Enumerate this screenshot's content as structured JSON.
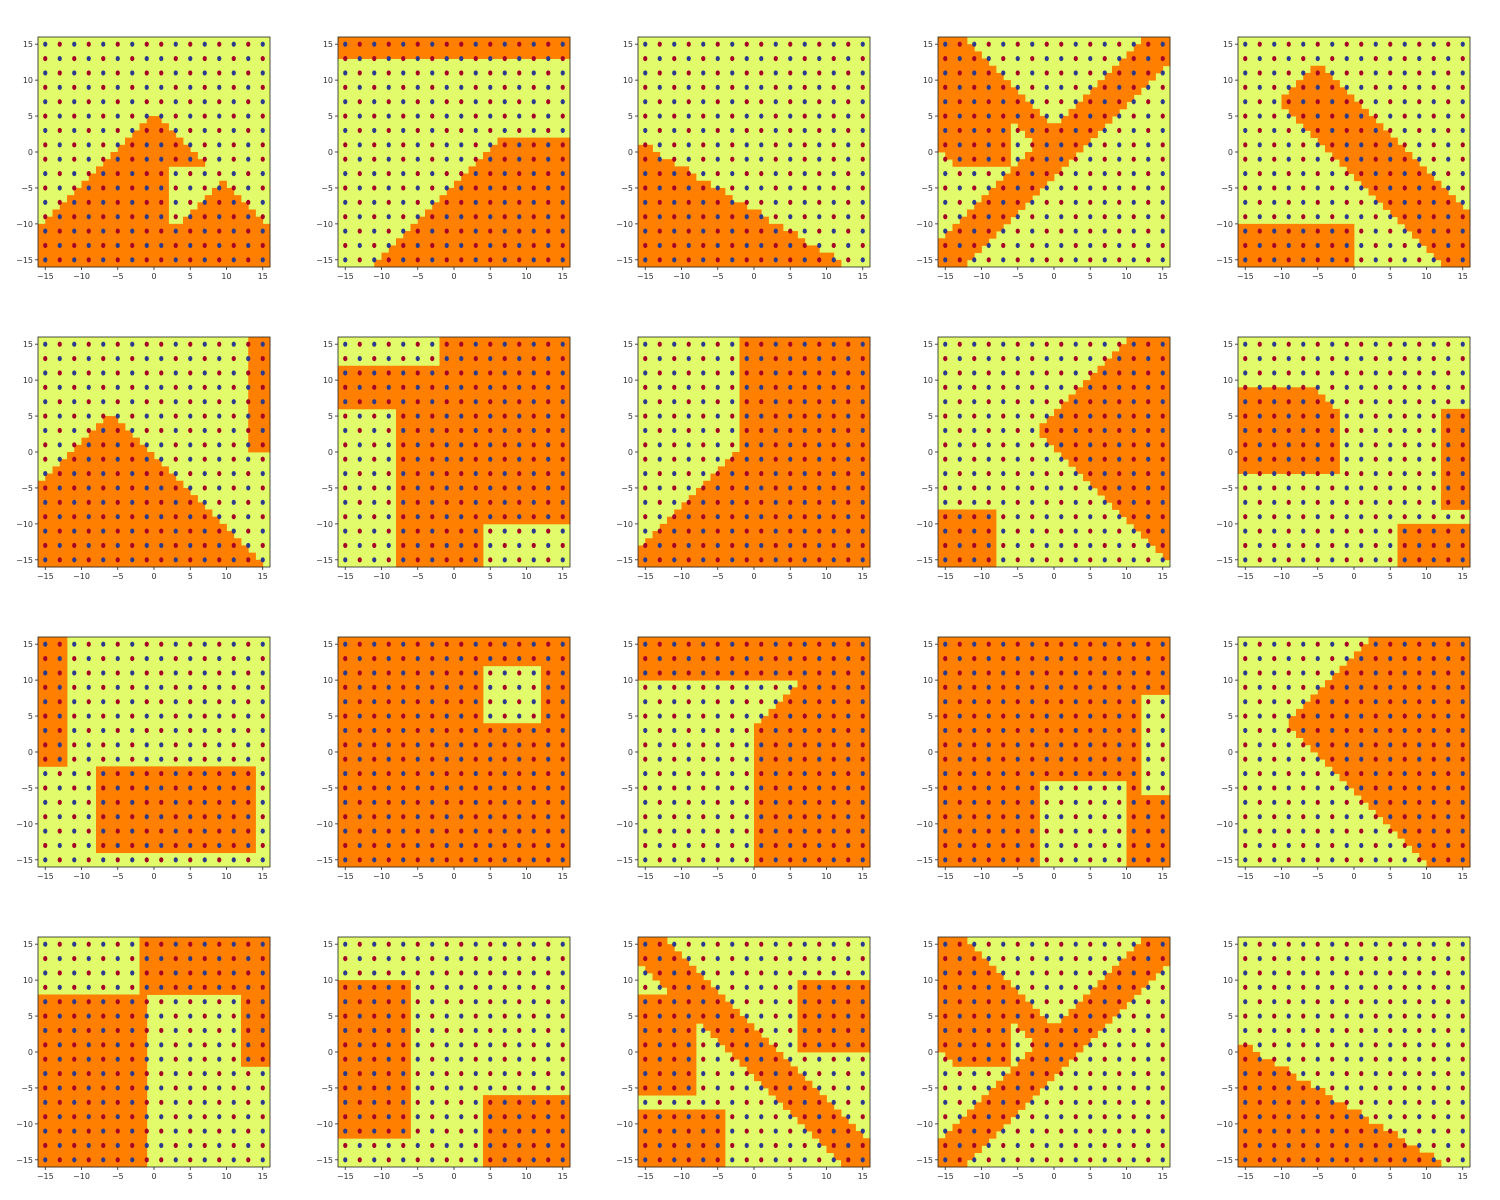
{
  "colors": {
    "region_a": "#e1fb6a",
    "region_b": "#ff7f00",
    "class_a_point": "#2b3a8c",
    "class_b_point": "#a50026"
  },
  "chart_data": {
    "type": "scatter",
    "layout": {
      "rows": 4,
      "cols": 5
    },
    "axis": {
      "xlim": [
        -16,
        16
      ],
      "ylim": [
        -16,
        16
      ],
      "xticks": [
        -15,
        -10,
        -5,
        0,
        5,
        10,
        15
      ],
      "yticks": [
        -15,
        -10,
        -5,
        0,
        5,
        10,
        15
      ],
      "xtick_labels": [
        "−15",
        "−10",
        "−5",
        "0",
        "5",
        "10",
        "15"
      ],
      "ytick_labels": [
        "−15",
        "−10",
        "−5",
        "0",
        "5",
        "10",
        "15"
      ]
    },
    "point_grid": {
      "start": -15,
      "stop": 15,
      "step": 2
    },
    "class_rule": "alternating diagonal checkerboard: |x - y| and |x + y| bands",
    "panels": [
      {
        "id": 1,
        "pattern": "x-cross-left"
      },
      {
        "id": 2,
        "pattern": "diag-up"
      },
      {
        "id": 3,
        "pattern": "bottom-left"
      },
      {
        "id": 4,
        "pattern": "x-cross-top"
      },
      {
        "id": 5,
        "pattern": "diag-down-band"
      },
      {
        "id": 6,
        "pattern": "diag-down-half"
      },
      {
        "id": 7,
        "pattern": "center-x"
      },
      {
        "id": 8,
        "pattern": "wedge-right"
      },
      {
        "id": 9,
        "pattern": "center-right"
      },
      {
        "id": 10,
        "pattern": "blob-left"
      },
      {
        "id": 11,
        "pattern": "mixed-light"
      },
      {
        "id": 12,
        "pattern": "mostly-orange"
      },
      {
        "id": 13,
        "pattern": "right-wedge"
      },
      {
        "id": 14,
        "pattern": "x-cross-dense"
      },
      {
        "id": 15,
        "pattern": "diag-band-wide"
      },
      {
        "id": 16,
        "pattern": "left-block"
      },
      {
        "id": 17,
        "pattern": "x-light"
      },
      {
        "id": 18,
        "pattern": "diag-crossed"
      },
      {
        "id": 19,
        "pattern": "x-cross-top"
      },
      {
        "id": 20,
        "pattern": "bottom-left"
      }
    ]
  }
}
